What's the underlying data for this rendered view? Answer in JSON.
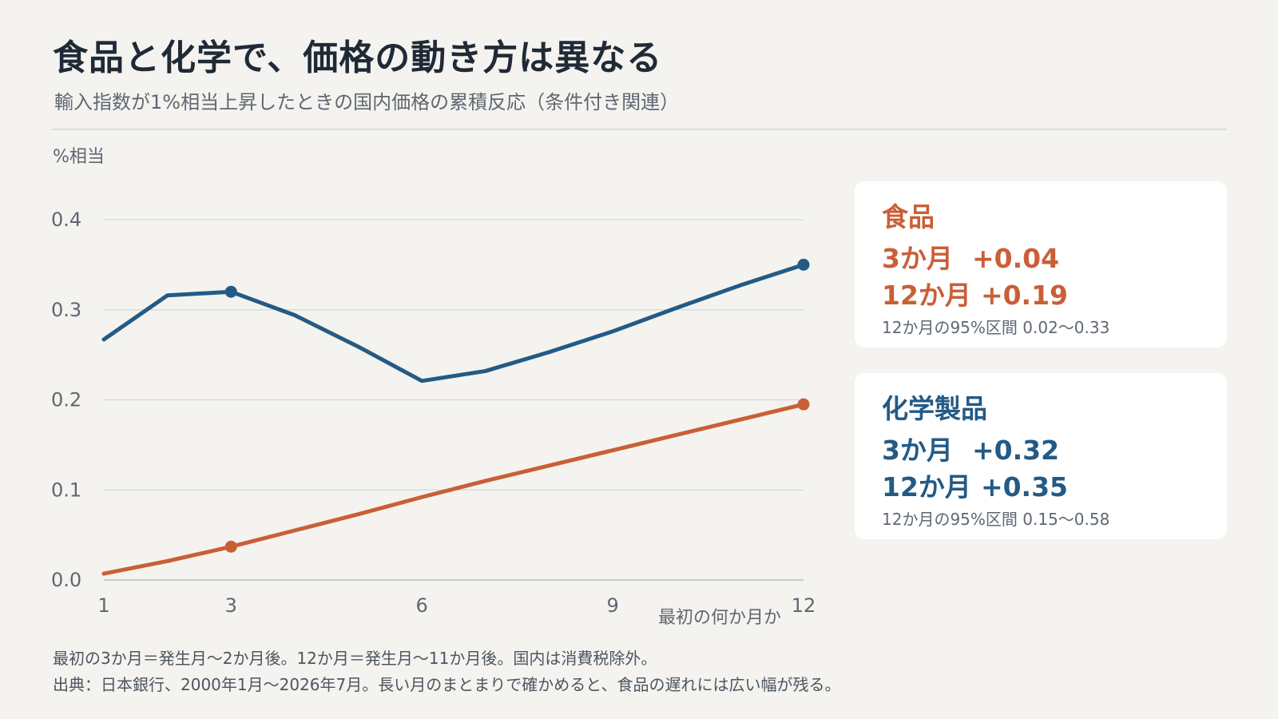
{
  "title": "食品と化学で、価格の動き方は異なる",
  "subtitle": "輸入指数が1%相当上昇したときの国内価格の累積反応（条件付き関連）",
  "y_unit": "%相当",
  "chart_data": {
    "type": "line",
    "x": [
      1,
      2,
      3,
      4,
      5,
      6,
      7,
      8,
      9,
      10,
      11,
      12
    ],
    "xlabel": "最初の何か月か",
    "ylabel": "%相当",
    "ylim": [
      0.0,
      0.4
    ],
    "xlim": [
      1,
      12
    ],
    "yticks": [
      "0.0",
      "0.1",
      "0.2",
      "0.3",
      "0.4"
    ],
    "xticks": [
      "1",
      "3",
      "6",
      "9",
      "12"
    ],
    "xtick_values": [
      1,
      3,
      6,
      9,
      12
    ],
    "grid": true,
    "series": [
      {
        "name": "化学製品",
        "color": "#235a86",
        "values": [
          0.267,
          0.316,
          0.32,
          0.294,
          0.259,
          0.221,
          0.232,
          0.253,
          0.276,
          0.302,
          0.327,
          0.35
        ],
        "markers_at": [
          3,
          12
        ]
      },
      {
        "name": "食品",
        "color": "#c95f37",
        "values": [
          0.007,
          0.021,
          0.037,
          0.055,
          0.073,
          0.092,
          0.11,
          0.127,
          0.144,
          0.161,
          0.178,
          0.195
        ],
        "markers_at": [
          3,
          12
        ]
      }
    ]
  },
  "cards": [
    {
      "name": "食品",
      "color": "#c95f37",
      "line1_label": "3か月",
      "line1_value": "+0.04",
      "line2_label": "12か月",
      "line2_value": "+0.19",
      "ci": "12か月の95%区間 0.02〜0.33"
    },
    {
      "name": "化学製品",
      "color": "#235a86",
      "line1_label": "3か月",
      "line1_value": "+0.32",
      "line2_label": "12か月",
      "line2_value": "+0.35",
      "ci": "12か月の95%区間 0.15〜0.58"
    }
  ],
  "footer": {
    "line1": "最初の3か月＝発生月〜2か月後。12か月＝発生月〜11か月後。国内は消費税除外。",
    "line2": "出典：日本銀行、2000年1月〜2026年7月。長い月のまとまりで確かめると、食品の遅れには広い幅が残る。"
  }
}
